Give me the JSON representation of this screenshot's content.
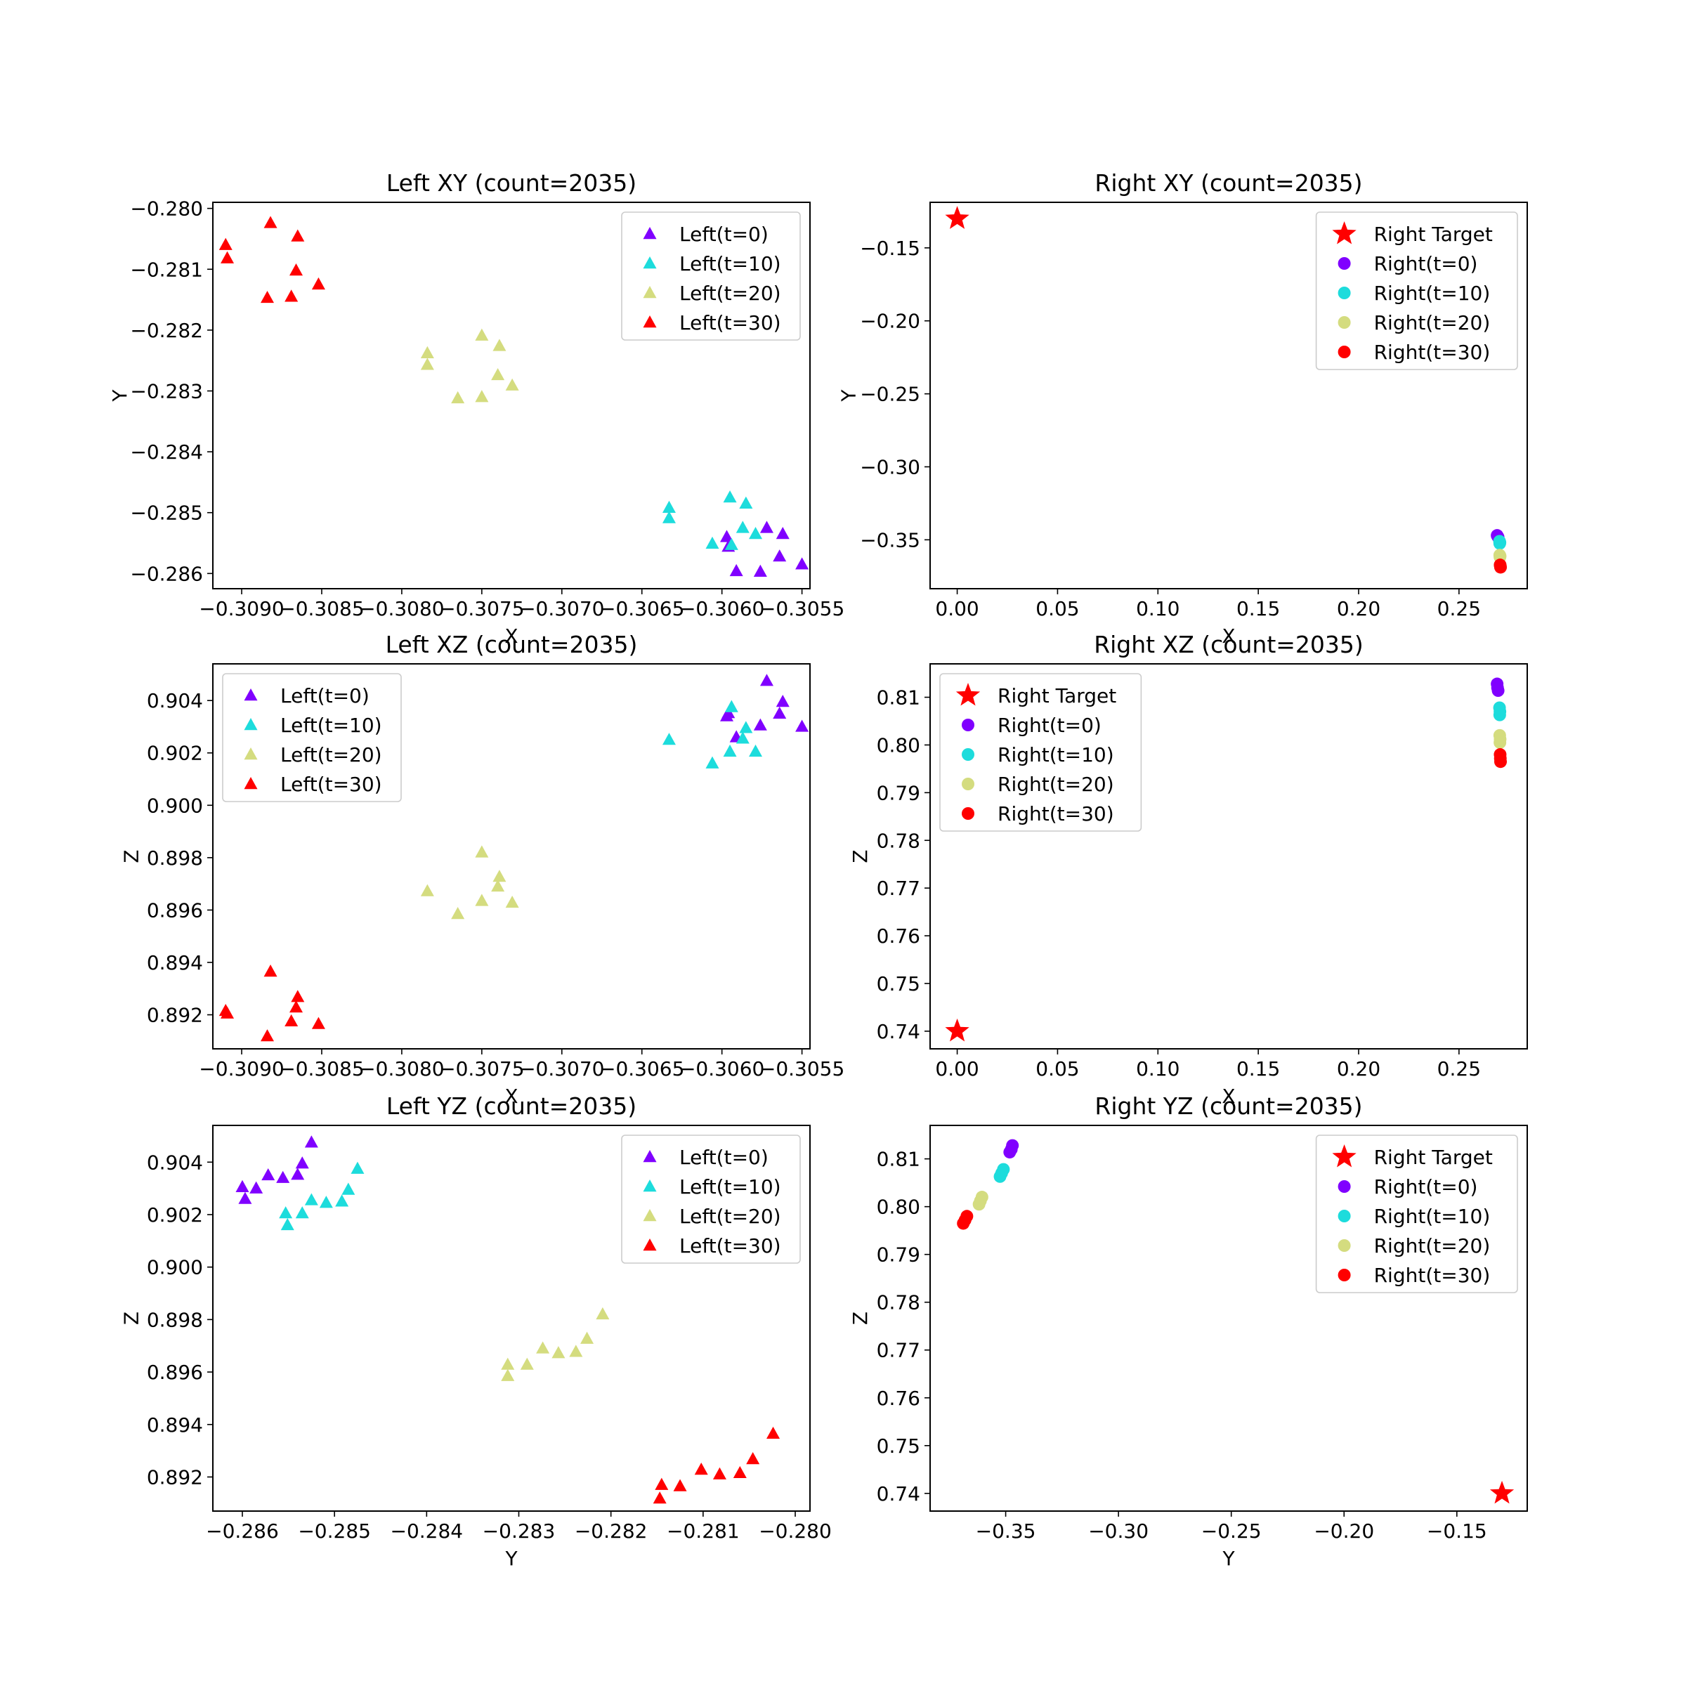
{
  "chart_data": [
    {
      "type": "scatter",
      "title": "Left XY (count=2035)",
      "xlabel": "X",
      "ylabel": "Y",
      "xlim": [
        -0.30918,
        -0.30545
      ],
      "ylim": [
        -0.28625,
        -0.2799
      ],
      "xticks": [
        -0.309,
        -0.3085,
        -0.308,
        -0.3075,
        -0.307,
        -0.3065,
        -0.306,
        -0.3055
      ],
      "xtick_labels": [
        "−0.3090",
        "−0.3085",
        "−0.3080",
        "−0.3075",
        "−0.3070",
        "−0.3065",
        "−0.3060",
        "−0.3055"
      ],
      "yticks": [
        -0.28,
        -0.281,
        -0.282,
        -0.283,
        -0.284,
        -0.285,
        -0.286
      ],
      "ytick_labels": [
        "−0.280",
        "−0.281",
        "−0.282",
        "−0.283",
        "−0.284",
        "−0.285",
        "−0.286"
      ],
      "legend": "top-right",
      "series": [
        {
          "name": "Left(t=0)",
          "marker": "triangle",
          "color": "#8000ff",
          "points": [
            [
              -0.30597,
              -0.2854
            ],
            [
              -0.30596,
              -0.28556
            ],
            [
              -0.30572,
              -0.28525
            ],
            [
              -0.30562,
              -0.28535
            ],
            [
              -0.3055,
              -0.28585
            ],
            [
              -0.30564,
              -0.28572
            ],
            [
              -0.30576,
              -0.28597
            ],
            [
              -0.30591,
              -0.28596
            ]
          ]
        },
        {
          "name": "Left(t=10)",
          "marker": "triangle",
          "color": "#1ddcdc",
          "points": [
            [
              -0.30633,
              -0.28492
            ],
            [
              -0.30633,
              -0.28509
            ],
            [
              -0.30606,
              -0.28551
            ],
            [
              -0.30594,
              -0.28553
            ],
            [
              -0.30595,
              -0.28475
            ],
            [
              -0.30585,
              -0.28485
            ],
            [
              -0.30587,
              -0.28525
            ],
            [
              -0.30579,
              -0.28535
            ]
          ]
        },
        {
          "name": "Left(t=20)",
          "marker": "triangle",
          "color": "#d4dc7f",
          "points": [
            [
              -0.30784,
              -0.28238
            ],
            [
              -0.30784,
              -0.28257
            ],
            [
              -0.3075,
              -0.28209
            ],
            [
              -0.30739,
              -0.28226
            ],
            [
              -0.3074,
              -0.28274
            ],
            [
              -0.30731,
              -0.28291
            ],
            [
              -0.3075,
              -0.2831
            ],
            [
              -0.30765,
              -0.28312
            ]
          ]
        },
        {
          "name": "Left(t=30)",
          "marker": "triangle",
          "color": "#ff0000",
          "points": [
            [
              -0.3091,
              -0.2806
            ],
            [
              -0.30909,
              -0.28082
            ],
            [
              -0.30882,
              -0.28024
            ],
            [
              -0.30865,
              -0.28046
            ],
            [
              -0.30866,
              -0.28102
            ],
            [
              -0.30852,
              -0.28125
            ],
            [
              -0.30869,
              -0.28145
            ],
            [
              -0.30884,
              -0.28147
            ]
          ]
        }
      ]
    },
    {
      "type": "scatter",
      "title": "Right XY (count=2035)",
      "xlabel": "X",
      "ylabel": "Y",
      "xlim": [
        -0.0135,
        0.284
      ],
      "ylim": [
        -0.3835,
        -0.1188
      ],
      "xticks": [
        0.0,
        0.05,
        0.1,
        0.15,
        0.2,
        0.25
      ],
      "xtick_labels": [
        "0.00",
        "0.05",
        "0.10",
        "0.15",
        "0.20",
        "0.25"
      ],
      "yticks": [
        -0.15,
        -0.2,
        -0.25,
        -0.3,
        -0.35
      ],
      "ytick_labels": [
        "−0.15",
        "−0.20",
        "−0.25",
        "−0.30",
        "−0.35"
      ],
      "legend": "top-right",
      "series": [
        {
          "name": "Right Target",
          "marker": "star",
          "color": "#ff0000",
          "points": [
            [
              0.0,
              -0.13
            ]
          ]
        },
        {
          "name": "Right(t=0)",
          "marker": "circle",
          "color": "#8000ff",
          "points": [
            [
              0.269,
              -0.347
            ],
            [
              0.2692,
              -0.3475
            ],
            [
              0.2695,
              -0.3482
            ]
          ]
        },
        {
          "name": "Right(t=10)",
          "marker": "circle",
          "color": "#1ddcdc",
          "points": [
            [
              0.2702,
              -0.351
            ],
            [
              0.2704,
              -0.3518
            ],
            [
              0.2703,
              -0.3525
            ]
          ]
        },
        {
          "name": "Right(t=20)",
          "marker": "circle",
          "color": "#d4dc7f",
          "points": [
            [
              0.2703,
              -0.3605
            ],
            [
              0.2705,
              -0.3612
            ],
            [
              0.2704,
              -0.3618
            ]
          ]
        },
        {
          "name": "Right(t=30)",
          "marker": "circle",
          "color": "#ff0000",
          "points": [
            [
              0.2705,
              -0.3672
            ],
            [
              0.2706,
              -0.368
            ],
            [
              0.2707,
              -0.3688
            ]
          ]
        }
      ]
    },
    {
      "type": "scatter",
      "title": "Left XZ (count=2035)",
      "xlabel": "X",
      "ylabel": "Z",
      "xlim": [
        -0.30918,
        -0.30545
      ],
      "ylim": [
        0.8907,
        0.9054
      ],
      "xticks": [
        -0.309,
        -0.3085,
        -0.308,
        -0.3075,
        -0.307,
        -0.3065,
        -0.306,
        -0.3055
      ],
      "xtick_labels": [
        "−0.3090",
        "−0.3085",
        "−0.3080",
        "−0.3075",
        "−0.3070",
        "−0.3065",
        "−0.3060",
        "−0.3055"
      ],
      "yticks": [
        0.892,
        0.894,
        0.896,
        0.898,
        0.9,
        0.902,
        0.904
      ],
      "ytick_labels": [
        "0.892",
        "0.894",
        "0.896",
        "0.898",
        "0.900",
        "0.902",
        "0.904"
      ],
      "legend": "top-left",
      "series": [
        {
          "name": "Left(t=0)",
          "marker": "triangle",
          "color": "#8000ff",
          "points": [
            [
              -0.30597,
              0.9034
            ],
            [
              -0.30596,
              0.90352
            ],
            [
              -0.30572,
              0.90475
            ],
            [
              -0.30562,
              0.90395
            ],
            [
              -0.3055,
              0.903
            ],
            [
              -0.30564,
              0.9035
            ],
            [
              -0.30576,
              0.90305
            ],
            [
              -0.30591,
              0.9026
            ]
          ]
        },
        {
          "name": "Left(t=10)",
          "marker": "triangle",
          "color": "#1ddcdc",
          "points": [
            [
              -0.30633,
              0.9025
            ],
            [
              -0.30606,
              0.9016
            ],
            [
              -0.30594,
              0.90375
            ],
            [
              -0.30595,
              0.90205
            ],
            [
              -0.30585,
              0.90295
            ],
            [
              -0.30587,
              0.90255
            ],
            [
              -0.30579,
              0.90205
            ]
          ]
        },
        {
          "name": "Left(t=20)",
          "marker": "triangle",
          "color": "#d4dc7f",
          "points": [
            [
              -0.30784,
              0.89672
            ],
            [
              -0.3075,
              0.8982
            ],
            [
              -0.30739,
              0.89727
            ],
            [
              -0.3074,
              0.8969
            ],
            [
              -0.30731,
              0.89628
            ],
            [
              -0.3075,
              0.89635
            ],
            [
              -0.30765,
              0.89585
            ]
          ]
        },
        {
          "name": "Left(t=30)",
          "marker": "triangle",
          "color": "#ff0000",
          "points": [
            [
              -0.3091,
              0.89215
            ],
            [
              -0.30909,
              0.89205
            ],
            [
              -0.30882,
              0.89365
            ],
            [
              -0.30865,
              0.89268
            ],
            [
              -0.30866,
              0.89228
            ],
            [
              -0.30852,
              0.89165
            ],
            [
              -0.30869,
              0.89175
            ],
            [
              -0.30884,
              0.89118
            ]
          ]
        }
      ]
    },
    {
      "type": "scatter",
      "title": "Right XZ (count=2035)",
      "xlabel": "X",
      "ylabel": "Z",
      "xlim": [
        -0.0135,
        0.284
      ],
      "ylim": [
        0.7363,
        0.817
      ],
      "xticks": [
        0.0,
        0.05,
        0.1,
        0.15,
        0.2,
        0.25
      ],
      "xtick_labels": [
        "0.00",
        "0.05",
        "0.10",
        "0.15",
        "0.20",
        "0.25"
      ],
      "yticks": [
        0.74,
        0.75,
        0.76,
        0.77,
        0.78,
        0.79,
        0.8,
        0.81
      ],
      "ytick_labels": [
        "0.74",
        "0.75",
        "0.76",
        "0.77",
        "0.78",
        "0.79",
        "0.80",
        "0.81"
      ],
      "legend": "top-left",
      "series": [
        {
          "name": "Right Target",
          "marker": "star",
          "color": "#ff0000",
          "points": [
            [
              0.0,
              0.74
            ]
          ]
        },
        {
          "name": "Right(t=0)",
          "marker": "circle",
          "color": "#8000ff",
          "points": [
            [
              0.269,
              0.8128
            ],
            [
              0.2692,
              0.812
            ],
            [
              0.2695,
              0.8114
            ]
          ]
        },
        {
          "name": "Right(t=10)",
          "marker": "circle",
          "color": "#1ddcdc",
          "points": [
            [
              0.2702,
              0.8078
            ],
            [
              0.2704,
              0.807
            ],
            [
              0.2703,
              0.8063
            ]
          ]
        },
        {
          "name": "Right(t=20)",
          "marker": "circle",
          "color": "#d4dc7f",
          "points": [
            [
              0.2703,
              0.802
            ],
            [
              0.2705,
              0.8012
            ],
            [
              0.2704,
              0.8005
            ]
          ]
        },
        {
          "name": "Right(t=30)",
          "marker": "circle",
          "color": "#ff0000",
          "points": [
            [
              0.2705,
              0.798
            ],
            [
              0.2706,
              0.7972
            ],
            [
              0.2707,
              0.7965
            ]
          ]
        }
      ]
    },
    {
      "type": "scatter",
      "title": "Left YZ (count=2035)",
      "xlabel": "Y",
      "ylabel": "Z",
      "xlim": [
        -0.28632,
        -0.27984
      ],
      "ylim": [
        0.8907,
        0.9054
      ],
      "xticks": [
        -0.286,
        -0.285,
        -0.284,
        -0.283,
        -0.282,
        -0.281,
        -0.28
      ],
      "xtick_labels": [
        "−0.286",
        "−0.285",
        "−0.284",
        "−0.283",
        "−0.282",
        "−0.281",
        "−0.280"
      ],
      "yticks": [
        0.892,
        0.894,
        0.896,
        0.898,
        0.9,
        0.902,
        0.904
      ],
      "ytick_labels": [
        "0.892",
        "0.894",
        "0.896",
        "0.898",
        "0.900",
        "0.902",
        "0.904"
      ],
      "legend": "top-right",
      "series": [
        {
          "name": "Left(t=0)",
          "marker": "triangle",
          "color": "#8000ff",
          "points": [
            [
              -0.286,
              0.90305
            ],
            [
              -0.28597,
              0.9026
            ],
            [
              -0.28585,
              0.903
            ],
            [
              -0.28572,
              0.9035
            ],
            [
              -0.28556,
              0.9034
            ],
            [
              -0.2854,
              0.90352
            ],
            [
              -0.28535,
              0.90395
            ],
            [
              -0.28525,
              0.90475
            ]
          ]
        },
        {
          "name": "Left(t=10)",
          "marker": "triangle",
          "color": "#1ddcdc",
          "points": [
            [
              -0.28553,
              0.90205
            ],
            [
              -0.28551,
              0.9016
            ],
            [
              -0.28535,
              0.90205
            ],
            [
              -0.28525,
              0.90255
            ],
            [
              -0.28509,
              0.90245
            ],
            [
              -0.28492,
              0.9025
            ],
            [
              -0.28485,
              0.90295
            ],
            [
              -0.28475,
              0.90375
            ]
          ]
        },
        {
          "name": "Left(t=20)",
          "marker": "triangle",
          "color": "#d4dc7f",
          "points": [
            [
              -0.28312,
              0.89628
            ],
            [
              -0.28312,
              0.89585
            ],
            [
              -0.28291,
              0.89628
            ],
            [
              -0.28274,
              0.8969
            ],
            [
              -0.28257,
              0.89672
            ],
            [
              -0.28238,
              0.89677
            ],
            [
              -0.28226,
              0.89727
            ],
            [
              -0.28209,
              0.8982
            ]
          ]
        },
        {
          "name": "Left(t=30)",
          "marker": "triangle",
          "color": "#ff0000",
          "points": [
            [
              -0.28147,
              0.89118
            ],
            [
              -0.28145,
              0.8917
            ],
            [
              -0.28125,
              0.89165
            ],
            [
              -0.28102,
              0.89228
            ],
            [
              -0.28082,
              0.8921
            ],
            [
              -0.2806,
              0.89215
            ],
            [
              -0.28046,
              0.89268
            ],
            [
              -0.28024,
              0.89365
            ]
          ]
        }
      ]
    },
    {
      "type": "scatter",
      "title": "Right YZ (count=2035)",
      "xlabel": "Y",
      "ylabel": "Z",
      "xlim": [
        -0.3835,
        -0.1188
      ],
      "ylim": [
        0.7363,
        0.817
      ],
      "xticks": [
        -0.35,
        -0.3,
        -0.25,
        -0.2,
        -0.15
      ],
      "xtick_labels": [
        "−0.35",
        "−0.30",
        "−0.25",
        "−0.20",
        "−0.15"
      ],
      "yticks": [
        0.74,
        0.75,
        0.76,
        0.77,
        0.78,
        0.79,
        0.8,
        0.81
      ],
      "ytick_labels": [
        "0.74",
        "0.75",
        "0.76",
        "0.77",
        "0.78",
        "0.79",
        "0.80",
        "0.81"
      ],
      "legend": "top-right",
      "series": [
        {
          "name": "Right Target",
          "marker": "star",
          "color": "#ff0000",
          "points": [
            [
              -0.13,
              0.74
            ]
          ]
        },
        {
          "name": "Right(t=0)",
          "marker": "circle",
          "color": "#8000ff",
          "points": [
            [
              -0.347,
              0.8128
            ],
            [
              -0.3475,
              0.812
            ],
            [
              -0.3482,
              0.8114
            ]
          ]
        },
        {
          "name": "Right(t=10)",
          "marker": "circle",
          "color": "#1ddcdc",
          "points": [
            [
              -0.351,
              0.8078
            ],
            [
              -0.3518,
              0.807
            ],
            [
              -0.3525,
              0.8063
            ]
          ]
        },
        {
          "name": "Right(t=20)",
          "marker": "circle",
          "color": "#d4dc7f",
          "points": [
            [
              -0.3605,
              0.802
            ],
            [
              -0.3612,
              0.8012
            ],
            [
              -0.3618,
              0.8005
            ]
          ]
        },
        {
          "name": "Right(t=30)",
          "marker": "circle",
          "color": "#ff0000",
          "points": [
            [
              -0.3672,
              0.798
            ],
            [
              -0.368,
              0.7972
            ],
            [
              -0.3688,
              0.7965
            ]
          ]
        }
      ]
    }
  ]
}
